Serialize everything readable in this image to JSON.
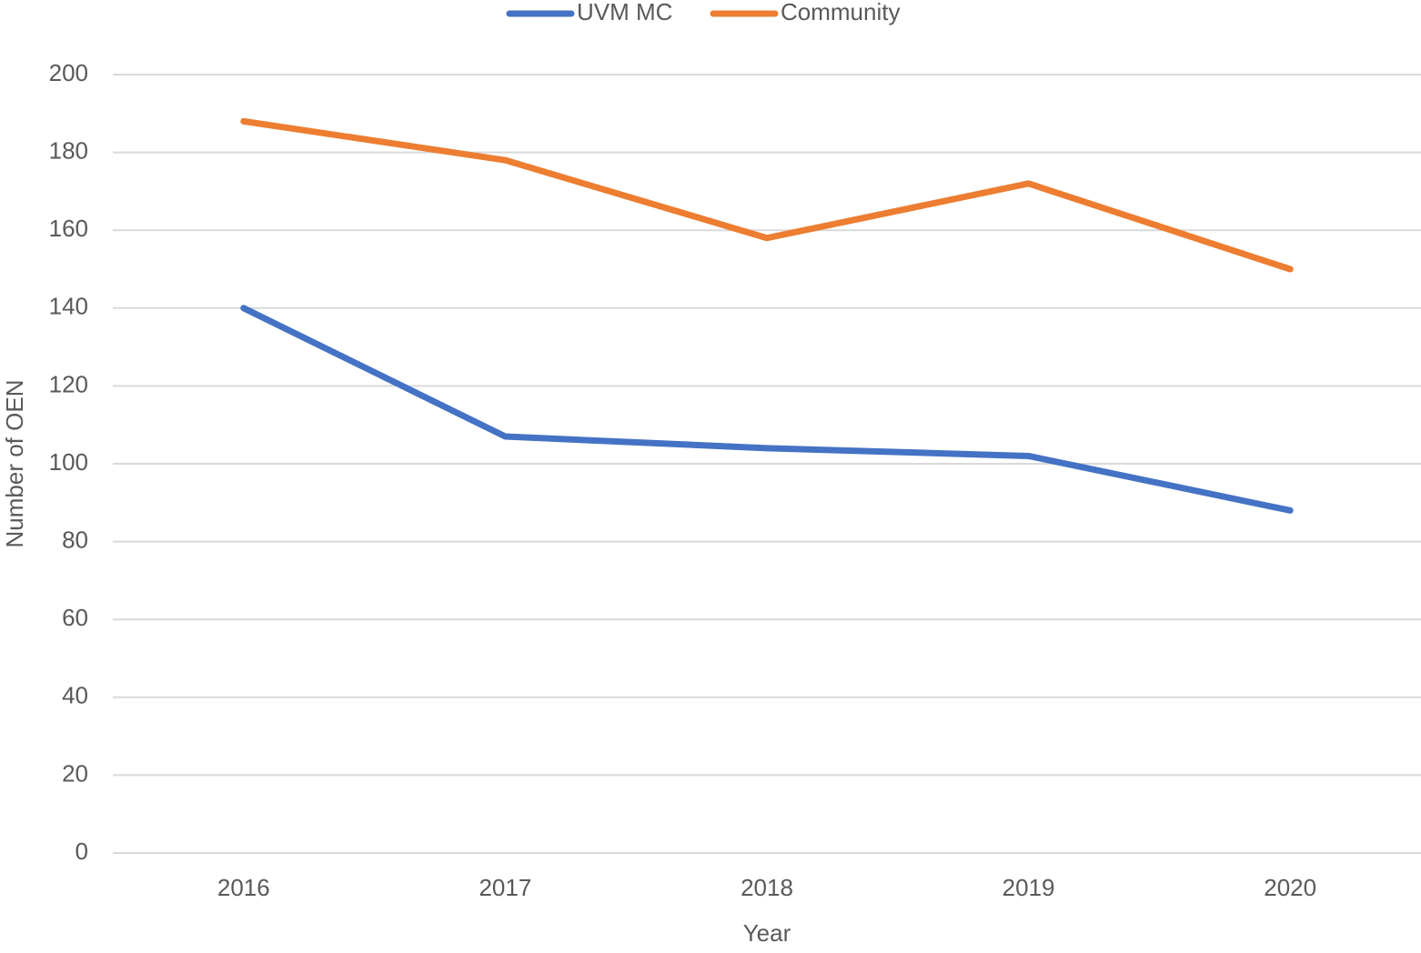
{
  "chart_data": {
    "type": "line",
    "x_label": "Year",
    "y_label": "Number of OEN",
    "categories": [
      "2016",
      "2017",
      "2018",
      "2019",
      "2020"
    ],
    "series": [
      {
        "name": "UVM MC",
        "color": "#4472c4",
        "values": [
          140,
          107,
          104,
          102,
          88
        ]
      },
      {
        "name": "Community",
        "color": "#ed7d31",
        "values": [
          188,
          178,
          158,
          172,
          150
        ]
      }
    ],
    "ylim": [
      0,
      200
    ],
    "yticks": [
      0,
      20,
      40,
      60,
      80,
      100,
      120,
      140,
      160,
      180,
      200
    ],
    "grid": true,
    "legend": "top"
  }
}
